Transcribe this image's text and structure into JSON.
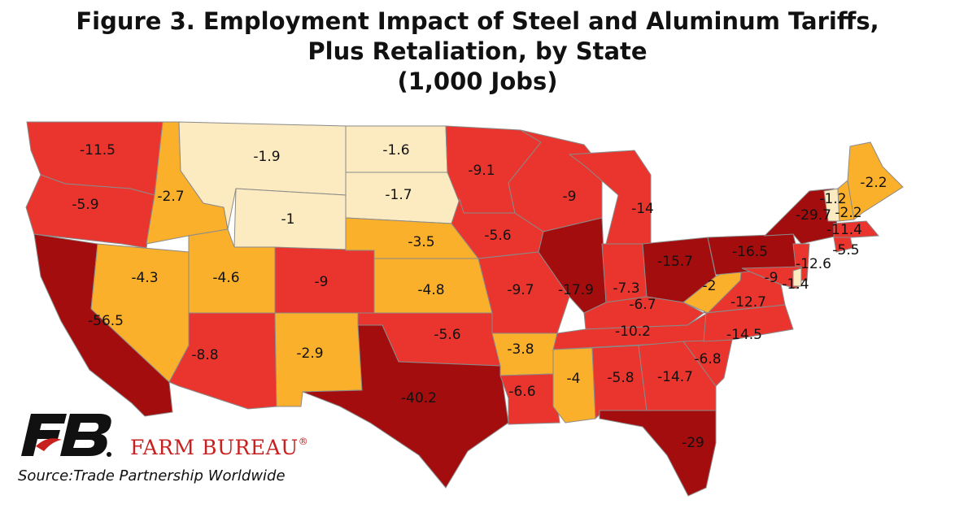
{
  "title": {
    "line1": "Figure 3. Employment Impact of Steel and Aluminum Tariffs,",
    "line2": "Plus Retaliation, by State",
    "line3": "(1,000 Jobs)"
  },
  "source": "Source:Trade Partnership Worldwide",
  "brand": {
    "name": "FARM BUREAU",
    "reg": "®",
    "logo_icon": "farm-bureau-fb-logo"
  },
  "colors": {
    "low": "#fcebc0",
    "mid": "#fbb02b",
    "high": "#e9352d",
    "highest": "#a30d0e",
    "border": "#8a8a8a"
  },
  "states": [
    {
      "id": "WA",
      "value": "-11.5"
    },
    {
      "id": "OR",
      "value": "-5.9"
    },
    {
      "id": "CA",
      "value": "-56.5"
    },
    {
      "id": "NV",
      "value": "-4.3"
    },
    {
      "id": "ID",
      "value": "-2.7"
    },
    {
      "id": "MT",
      "value": "-1.9"
    },
    {
      "id": "WY",
      "value": "-1"
    },
    {
      "id": "UT",
      "value": "-4.6"
    },
    {
      "id": "AZ",
      "value": "-8.8"
    },
    {
      "id": "CO",
      "value": "-9"
    },
    {
      "id": "NM",
      "value": "-2.9"
    },
    {
      "id": "ND",
      "value": "-1.6"
    },
    {
      "id": "SD",
      "value": "-1.7"
    },
    {
      "id": "NE",
      "value": "-3.5"
    },
    {
      "id": "KS",
      "value": "-4.8"
    },
    {
      "id": "OK",
      "value": "-5.6"
    },
    {
      "id": "TX",
      "value": "-40.2"
    },
    {
      "id": "MN",
      "value": "-9.1"
    },
    {
      "id": "IA",
      "value": "-5.6"
    },
    {
      "id": "MO",
      "value": "-9.7"
    },
    {
      "id": "AR",
      "value": "-3.8"
    },
    {
      "id": "LA",
      "value": "-6.6"
    },
    {
      "id": "WI",
      "value": "-9"
    },
    {
      "id": "IL",
      "value": "-17.9"
    },
    {
      "id": "MI",
      "value": "-14"
    },
    {
      "id": "IN",
      "value": "-7.3"
    },
    {
      "id": "OH",
      "value": "-15.7"
    },
    {
      "id": "KY",
      "value": "-6.7"
    },
    {
      "id": "TN",
      "value": "-10.2"
    },
    {
      "id": "MS",
      "value": "-4"
    },
    {
      "id": "AL",
      "value": "-5.8"
    },
    {
      "id": "GA",
      "value": "-14.7"
    },
    {
      "id": "FL",
      "value": "-29"
    },
    {
      "id": "SC",
      "value": "-6.8"
    },
    {
      "id": "NC",
      "value": "-14.5"
    },
    {
      "id": "VA",
      "value": "-12.7"
    },
    {
      "id": "WV",
      "value": "-2"
    },
    {
      "id": "PA",
      "value": "-16.5"
    },
    {
      "id": "NY",
      "value": "-29.7"
    },
    {
      "id": "NJ",
      "value": "-12.6"
    },
    {
      "id": "MD",
      "value": "-9"
    },
    {
      "id": "DE",
      "value": "-1.4"
    },
    {
      "id": "CT",
      "value": "-5.5"
    },
    {
      "id": "MA",
      "value": "-11.4"
    },
    {
      "id": "VT",
      "value": "-1.2"
    },
    {
      "id": "NH",
      "value": "-2.2"
    },
    {
      "id": "ME",
      "value": "-2.2"
    }
  ]
}
